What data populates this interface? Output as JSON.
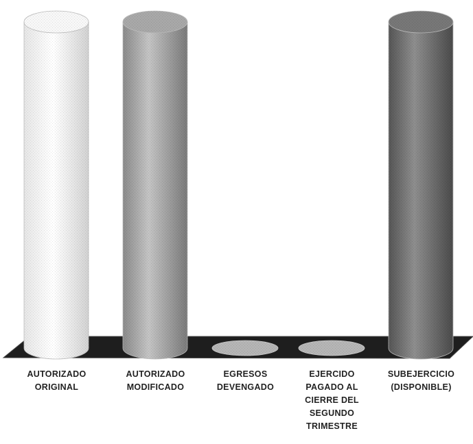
{
  "chart_data": {
    "type": "bar",
    "style": "3d-cylinder",
    "categories": [
      "AUTORIZADO\nORIGINAL",
      "AUTORIZADO\nMODIFICADO",
      "EGRESOS\nDEVENGADO",
      "EJERCIDO\nPAGADO AL\nCIERRE DEL\nSEGUNDO\nTRIMESTRE",
      "SUBEJERCICIO\n(DISPONIBLE)"
    ],
    "values": [
      100,
      100,
      0,
      0,
      100
    ],
    "ylim": [
      0,
      100
    ],
    "grid": false,
    "legend": "none",
    "colors": [
      "#f7f7f7",
      "#a8a8a8",
      "#b5b5b5",
      "#b5b5b5",
      "#777777"
    ],
    "floor_color": "#1e1e1e"
  }
}
